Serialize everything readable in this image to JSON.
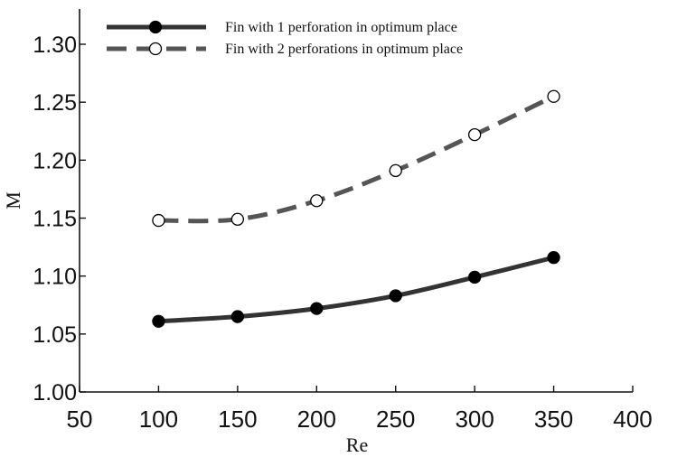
{
  "chart_data": {
    "type": "line",
    "xlabel": "Re",
    "ylabel": "M",
    "xlim": [
      50,
      400
    ],
    "ylim": [
      1.0,
      1.3
    ],
    "xticks": [
      "50",
      "100",
      "150",
      "200",
      "250",
      "300",
      "350",
      "400"
    ],
    "yticks": [
      "1.00",
      "1.05",
      "1.10",
      "1.15",
      "1.20",
      "1.25",
      "1.30"
    ],
    "grid": false,
    "legend_position": "top-left",
    "series": [
      {
        "name": "Fin with 1 perforation in optimum place",
        "x": [
          100,
          150,
          200,
          250,
          300,
          350
        ],
        "y": [
          1.061,
          1.065,
          1.072,
          1.083,
          1.099,
          1.116
        ],
        "style": "solid",
        "marker": "filled-circle",
        "color": "#333333"
      },
      {
        "name": "Fin with 2 perforations in optimum place",
        "x": [
          100,
          150,
          200,
          250,
          300,
          350
        ],
        "y": [
          1.148,
          1.149,
          1.165,
          1.191,
          1.222,
          1.255
        ],
        "style": "dashed",
        "marker": "open-circle",
        "color": "#555555"
      }
    ]
  }
}
